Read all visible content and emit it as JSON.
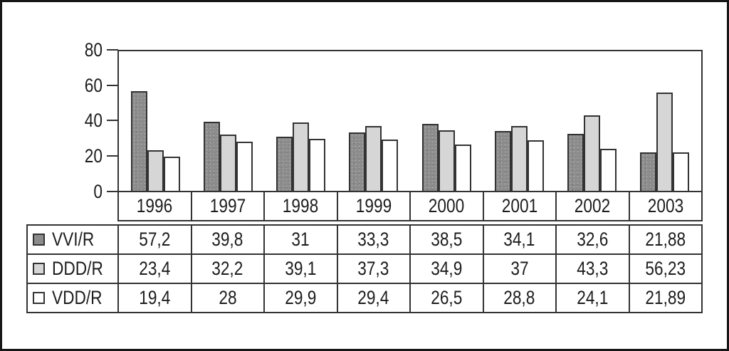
{
  "chart_data": {
    "type": "bar",
    "title": "",
    "xlabel": "",
    "ylabel": "",
    "categories": [
      "1996",
      "1997",
      "1998",
      "1999",
      "2000",
      "2001",
      "2002",
      "2003"
    ],
    "series": [
      {
        "name": "VVI/R",
        "color": "#8c8c8c",
        "values": [
          57.2,
          39.8,
          31,
          33.3,
          38.5,
          34.1,
          32.6,
          21.88
        ]
      },
      {
        "name": "DDD/R",
        "color": "#d6d6d6",
        "values": [
          23.4,
          32.2,
          39.1,
          37.3,
          34.9,
          37,
          43.3,
          56.23
        ]
      },
      {
        "name": "VDD/R",
        "color": "#ffffff",
        "values": [
          19.4,
          28,
          29.9,
          29.4,
          26.5,
          28.8,
          24.1,
          21.89
        ]
      }
    ],
    "ylim": [
      0,
      80
    ],
    "yticks": [
      0,
      20,
      40,
      60,
      80
    ],
    "grid": false,
    "legend_position": "table-left",
    "bar_border_color": "#333333"
  },
  "axis": {
    "ytick_labels": [
      "80",
      "60",
      "40",
      "20",
      "0"
    ]
  },
  "table": {
    "year_headers": [
      "1996",
      "1997",
      "1998",
      "1999",
      "2000",
      "2001",
      "2002",
      "2003"
    ],
    "rows": [
      {
        "label": "VVI/R",
        "swatch_color": "#8c8c8c",
        "values": [
          "57,2",
          "39,8",
          "31",
          "33,3",
          "38,5",
          "34,1",
          "32,6",
          "21,88"
        ]
      },
      {
        "label": "DDD/R",
        "swatch_color": "#d6d6d6",
        "values": [
          "23,4",
          "32,2",
          "39,1",
          "37,3",
          "34,9",
          "37",
          "43,3",
          "56,23"
        ]
      },
      {
        "label": "VDD/R",
        "swatch_color": "#ffffff",
        "values": [
          "19,4",
          "28",
          "29,9",
          "29,4",
          "26,5",
          "28,8",
          "24,1",
          "21,89"
        ]
      }
    ]
  }
}
